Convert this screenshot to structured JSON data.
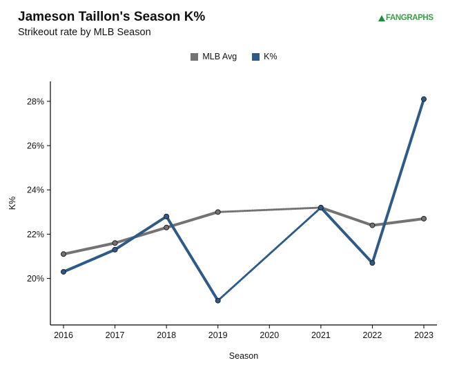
{
  "header": {
    "title": "Jameson Taillon's Season K%",
    "subtitle": "Strikeout rate by MLB Season",
    "brand": "FANGRAPHS"
  },
  "colors": {
    "mlb_avg": "#737373",
    "k_pct": "#2e5a88",
    "brand": "#38a048"
  },
  "chart_data": {
    "type": "line",
    "title": "Jameson Taillon's Season K%",
    "subtitle": "Strikeout rate by MLB Season",
    "xlabel": "Season",
    "ylabel": "K%",
    "categories": [
      "2016",
      "2017",
      "2018",
      "2019",
      "2020",
      "2021",
      "2022",
      "2023"
    ],
    "y_ticks": [
      20,
      22,
      24,
      26,
      28
    ],
    "y_tick_labels": [
      "20%",
      "22%",
      "24%",
      "26%",
      "28%"
    ],
    "ylim": [
      17.9,
      28.9
    ],
    "legend_position": "top-center",
    "grid": false,
    "gap_style": "dotted line bridges missing 2020 season",
    "series": [
      {
        "name": "MLB Avg",
        "color": "#737373",
        "values": [
          21.1,
          21.6,
          22.3,
          23.0,
          null,
          23.2,
          22.4,
          22.7
        ]
      },
      {
        "name": "K%",
        "color": "#2e5a88",
        "values": [
          20.3,
          21.3,
          22.8,
          19.0,
          null,
          23.2,
          20.7,
          28.1
        ]
      }
    ]
  }
}
